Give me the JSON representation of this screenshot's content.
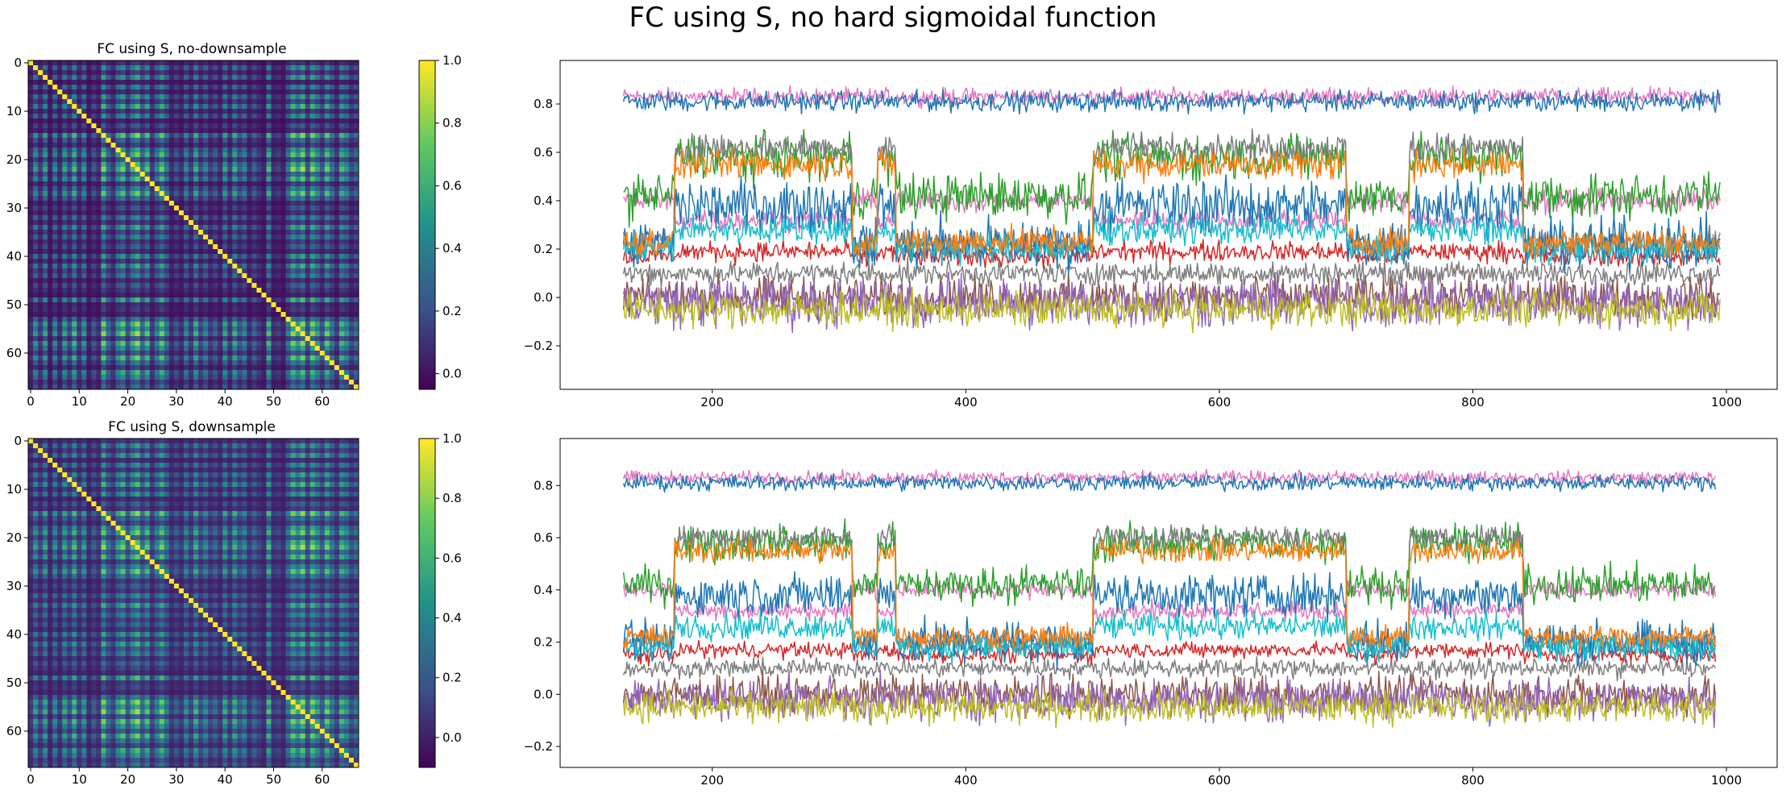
{
  "figure": {
    "suptitle": "FC using S, no hard sigmoidal function"
  },
  "colormap": {
    "name": "viridis",
    "stops": [
      "#440154",
      "#3b528b",
      "#21918c",
      "#5ec962",
      "#fde725"
    ]
  },
  "chart_data": [
    {
      "type": "heatmap",
      "title": "FC using S, no-downsample",
      "size": 68,
      "xticks": [
        "0",
        "10",
        "20",
        "30",
        "40",
        "50",
        "60"
      ],
      "yticks": [
        "0",
        "10",
        "20",
        "30",
        "40",
        "50",
        "60"
      ],
      "colorbar": {
        "range": [
          -0.05,
          1.0
        ],
        "ticks": [
          "0.0",
          "0.2",
          "0.4",
          "0.6",
          "0.8",
          "1.0"
        ],
        "tick_values": [
          0.0,
          0.2,
          0.4,
          0.6,
          0.8,
          1.0
        ]
      },
      "diagonal": 1.0,
      "row_factor": [
        0.15,
        0.55,
        0.2,
        0.6,
        0.1,
        0.5,
        0.15,
        0.6,
        0.25,
        0.7,
        0.2,
        0.55,
        0.1,
        0.3,
        0.15,
        0.85,
        0.4,
        0.2,
        0.6,
        0.8,
        0.3,
        0.7,
        0.9,
        0.4,
        0.75,
        0.2,
        0.5,
        0.8,
        0.45,
        0.15,
        0.3,
        0.15,
        0.5,
        0.2,
        0.65,
        0.25,
        0.5,
        0.2,
        0.35,
        0.15,
        0.6,
        0.2,
        0.65,
        0.3,
        0.5,
        0.15,
        0.35,
        0.2,
        0.1,
        0.7,
        0.15,
        0.2,
        0.1,
        0.45,
        0.85,
        0.6,
        0.9,
        0.3,
        0.85,
        0.6,
        0.3,
        0.8,
        0.45,
        0.2,
        0.7,
        0.55,
        0.25,
        0.4
      ]
    },
    {
      "type": "line",
      "x_range": [
        130,
        995
      ],
      "xlim": [
        80,
        1040
      ],
      "ylim": [
        -0.38,
        0.98
      ],
      "xticks": [
        200,
        400,
        600,
        800,
        1000
      ],
      "yticks": [
        -0.2,
        0.0,
        0.2,
        0.4,
        0.6,
        0.8
      ],
      "ytick_labels": [
        "−0.2",
        "0.0",
        "0.2",
        "0.4",
        "0.6",
        "0.8"
      ],
      "noise_scale": 1.0,
      "high_state_intervals": [
        [
          170,
          310
        ],
        [
          330,
          345
        ],
        [
          500,
          700
        ],
        [
          750,
          840
        ]
      ],
      "series": [
        {
          "color": "#e377c2",
          "base": 0.83,
          "high": 0.83,
          "noise": 0.03
        },
        {
          "color": "#1f77b4",
          "base": 0.81,
          "high": 0.81,
          "noise": 0.035
        },
        {
          "color": "#8c564b",
          "base": 0.0,
          "high": 0.0,
          "noise": 0.07
        },
        {
          "color": "#9467bd",
          "base": -0.02,
          "high": -0.02,
          "noise": 0.09
        },
        {
          "color": "#bcbd22",
          "base": -0.05,
          "high": -0.05,
          "noise": 0.06
        },
        {
          "color": "#7f7f7f",
          "base": 0.1,
          "high": 0.1,
          "noise": 0.04
        },
        {
          "color": "#d62728",
          "base": 0.17,
          "high": 0.19,
          "noise": 0.035
        },
        {
          "color": "#e377c2",
          "base": 0.4,
          "high": 0.32,
          "noise": 0.04
        },
        {
          "color": "#2ca02c",
          "base": 0.42,
          "high": 0.58,
          "noise": 0.08
        },
        {
          "color": "#7f7f7f",
          "base": 0.22,
          "high": 0.62,
          "noise": 0.05
        },
        {
          "color": "#1f77b4",
          "base": 0.22,
          "high": 0.38,
          "noise": 0.09
        },
        {
          "color": "#17becf",
          "base": 0.2,
          "high": 0.28,
          "noise": 0.05
        },
        {
          "color": "#ff7f0e",
          "base": 0.23,
          "high": 0.55,
          "noise": 0.05
        }
      ]
    },
    {
      "type": "heatmap",
      "title": "FC using S, downsample",
      "size": 68,
      "xticks": [
        "0",
        "10",
        "20",
        "30",
        "40",
        "50",
        "60"
      ],
      "yticks": [
        "0",
        "10",
        "20",
        "30",
        "40",
        "50",
        "60"
      ],
      "colorbar": {
        "range": [
          -0.1,
          1.0
        ],
        "ticks": [
          "0.0",
          "0.2",
          "0.4",
          "0.6",
          "0.8",
          "1.0"
        ],
        "tick_values": [
          0.0,
          0.2,
          0.4,
          0.6,
          0.8,
          1.0
        ]
      },
      "diagonal": 1.0,
      "row_factor": [
        0.15,
        0.55,
        0.2,
        0.6,
        0.1,
        0.5,
        0.15,
        0.6,
        0.25,
        0.7,
        0.2,
        0.55,
        0.1,
        0.3,
        0.15,
        0.85,
        0.4,
        0.2,
        0.6,
        0.8,
        0.3,
        0.7,
        0.9,
        0.4,
        0.75,
        0.2,
        0.5,
        0.8,
        0.45,
        0.15,
        0.3,
        0.15,
        0.5,
        0.2,
        0.65,
        0.25,
        0.5,
        0.2,
        0.35,
        0.15,
        0.6,
        0.2,
        0.65,
        0.3,
        0.5,
        0.15,
        0.35,
        0.2,
        0.1,
        0.7,
        0.15,
        0.2,
        0.1,
        0.45,
        0.85,
        0.6,
        0.9,
        0.3,
        0.85,
        0.6,
        0.3,
        0.8,
        0.45,
        0.2,
        0.7,
        0.55,
        0.25,
        0.4
      ]
    },
    {
      "type": "line",
      "x_range": [
        130,
        992
      ],
      "xlim": [
        80,
        1040
      ],
      "ylim": [
        -0.28,
        0.98
      ],
      "xticks": [
        200,
        400,
        600,
        800,
        1000
      ],
      "yticks": [
        -0.2,
        0.0,
        0.2,
        0.4,
        0.6,
        0.8
      ],
      "ytick_labels": [
        "−0.2",
        "0.0",
        "0.2",
        "0.4",
        "0.6",
        "0.8"
      ],
      "noise_scale": 0.85,
      "high_state_intervals": [
        [
          170,
          310
        ],
        [
          330,
          345
        ],
        [
          500,
          700
        ],
        [
          750,
          840
        ]
      ],
      "series": [
        {
          "color": "#e377c2",
          "base": 0.83,
          "high": 0.83,
          "noise": 0.025
        },
        {
          "color": "#1f77b4",
          "base": 0.81,
          "high": 0.81,
          "noise": 0.03
        },
        {
          "color": "#8c564b",
          "base": 0.0,
          "high": 0.0,
          "noise": 0.07
        },
        {
          "color": "#9467bd",
          "base": -0.02,
          "high": -0.02,
          "noise": 0.08
        },
        {
          "color": "#bcbd22",
          "base": -0.05,
          "high": -0.05,
          "noise": 0.06
        },
        {
          "color": "#7f7f7f",
          "base": 0.1,
          "high": 0.1,
          "noise": 0.035
        },
        {
          "color": "#d62728",
          "base": 0.15,
          "high": 0.17,
          "noise": 0.03
        },
        {
          "color": "#e377c2",
          "base": 0.4,
          "high": 0.32,
          "noise": 0.035
        },
        {
          "color": "#2ca02c",
          "base": 0.42,
          "high": 0.58,
          "noise": 0.07
        },
        {
          "color": "#7f7f7f",
          "base": 0.2,
          "high": 0.6,
          "noise": 0.045
        },
        {
          "color": "#1f77b4",
          "base": 0.2,
          "high": 0.38,
          "noise": 0.08
        },
        {
          "color": "#17becf",
          "base": 0.18,
          "high": 0.26,
          "noise": 0.05
        },
        {
          "color": "#ff7f0e",
          "base": 0.22,
          "high": 0.55,
          "noise": 0.045
        }
      ]
    }
  ]
}
